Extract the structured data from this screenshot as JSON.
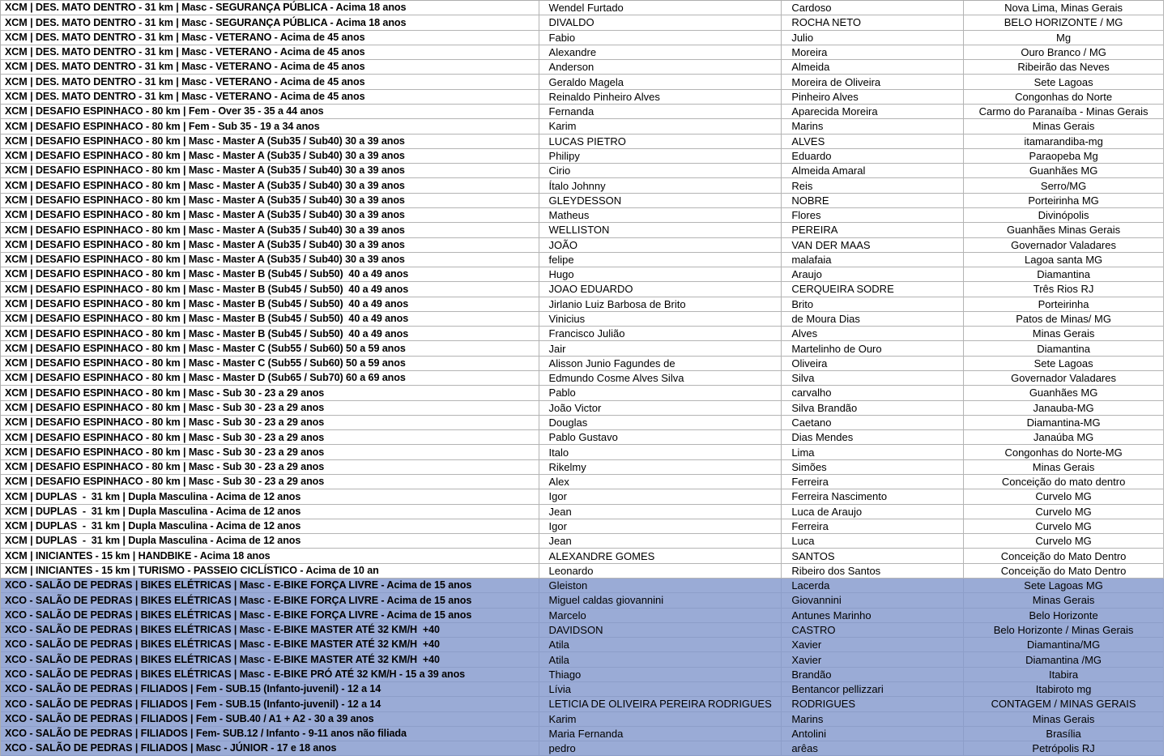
{
  "table": {
    "columns": [
      "category",
      "first_name",
      "last_name",
      "city"
    ],
    "highlight_color": "#9aabd6",
    "rows": [
      {
        "category": "XCM | DES. MATO DENTRO - 31 km | Masc - SEGURANÇA PÚBLICA - Acima 18 anos",
        "first_name": "Wendel Furtado",
        "last_name": "Cardoso",
        "city": "Nova Lima, Minas Gerais",
        "highlighted": false
      },
      {
        "category": "XCM | DES. MATO DENTRO - 31 km | Masc - SEGURANÇA PÚBLICA - Acima 18 anos",
        "first_name": "DIVALDO",
        "last_name": "ROCHA NETO",
        "city": "BELO HORIZONTE / MG",
        "highlighted": false
      },
      {
        "category": "XCM | DES. MATO DENTRO - 31 km | Masc - VETERANO - Acima de 45 anos",
        "first_name": "Fabio",
        "last_name": "Julio",
        "city": "Mg",
        "highlighted": false
      },
      {
        "category": "XCM | DES. MATO DENTRO - 31 km | Masc - VETERANO - Acima de 45 anos",
        "first_name": "Alexandre",
        "last_name": "Moreira",
        "city": "Ouro Branco / MG",
        "highlighted": false
      },
      {
        "category": "XCM | DES. MATO DENTRO - 31 km | Masc - VETERANO - Acima de 45 anos",
        "first_name": "Anderson",
        "last_name": "Almeida",
        "city": "Ribeirão das Neves",
        "highlighted": false
      },
      {
        "category": "XCM | DES. MATO DENTRO - 31 km | Masc - VETERANO - Acima de 45 anos",
        "first_name": "Geraldo Magela",
        "last_name": "Moreira de Oliveira",
        "city": "Sete Lagoas",
        "highlighted": false
      },
      {
        "category": "XCM | DES. MATO DENTRO - 31 km | Masc - VETERANO - Acima de 45 anos",
        "first_name": "Reinaldo Pinheiro Alves",
        "last_name": "Pinheiro Alves",
        "city": "Congonhas do Norte",
        "highlighted": false
      },
      {
        "category": "XCM | DESAFIO ESPINHACO - 80 km | Fem - Over 35 - 35 a 44 anos",
        "first_name": "Fernanda",
        "last_name": "Aparecida Moreira",
        "city": "Carmo do Paranaíba - Minas Gerais",
        "highlighted": false
      },
      {
        "category": "XCM | DESAFIO ESPINHACO - 80 km | Fem - Sub 35 - 19 a 34 anos",
        "first_name": "Karim",
        "last_name": "Marins",
        "city": "Minas Gerais",
        "highlighted": false
      },
      {
        "category": "XCM | DESAFIO ESPINHACO - 80 km | Masc - Master A (Sub35 / Sub40) 30 a 39 anos",
        "first_name": "LUCAS PIETRO",
        "last_name": "ALVES",
        "city": "itamarandiba-mg",
        "highlighted": false
      },
      {
        "category": "XCM | DESAFIO ESPINHACO - 80 km | Masc - Master A (Sub35 / Sub40) 30 a 39 anos",
        "first_name": "Philipy",
        "last_name": "Eduardo",
        "city": "Paraopeba Mg",
        "highlighted": false
      },
      {
        "category": "XCM | DESAFIO ESPINHACO - 80 km | Masc - Master A (Sub35 / Sub40) 30 a 39 anos",
        "first_name": "Cirio",
        "last_name": "Almeida Amaral",
        "city": "Guanhães MG",
        "highlighted": false
      },
      {
        "category": "XCM | DESAFIO ESPINHACO - 80 km | Masc - Master A (Sub35 / Sub40) 30 a 39 anos",
        "first_name": "Ítalo Johnny",
        "last_name": "Reis",
        "city": "Serro/MG",
        "highlighted": false
      },
      {
        "category": "XCM | DESAFIO ESPINHACO - 80 km | Masc - Master A (Sub35 / Sub40) 30 a 39 anos",
        "first_name": "GLEYDESSON",
        "last_name": "NOBRE",
        "city": "Porteirinha MG",
        "highlighted": false
      },
      {
        "category": "XCM | DESAFIO ESPINHACO - 80 km | Masc - Master A (Sub35 / Sub40) 30 a 39 anos",
        "first_name": "Matheus",
        "last_name": "Flores",
        "city": "Divinópolis",
        "highlighted": false
      },
      {
        "category": "XCM | DESAFIO ESPINHACO - 80 km | Masc - Master A (Sub35 / Sub40) 30 a 39 anos",
        "first_name": "WELLISTON",
        "last_name": "PEREIRA",
        "city": "Guanhães Minas Gerais",
        "highlighted": false
      },
      {
        "category": "XCM | DESAFIO ESPINHACO - 80 km | Masc - Master A (Sub35 / Sub40) 30 a 39 anos",
        "first_name": "JOÃO",
        "last_name": "VAN DER MAAS",
        "city": "Governador Valadares",
        "highlighted": false
      },
      {
        "category": "XCM | DESAFIO ESPINHACO - 80 km | Masc - Master A (Sub35 / Sub40) 30 a 39 anos",
        "first_name": "felipe",
        "last_name": "malafaia",
        "city": "Lagoa santa MG",
        "highlighted": false
      },
      {
        "category": "XCM | DESAFIO ESPINHACO - 80 km | Masc - Master B (Sub45 / Sub50)  40 a 49 anos",
        "first_name": "Hugo",
        "last_name": "Araujo",
        "city": "Diamantina",
        "highlighted": false
      },
      {
        "category": "XCM | DESAFIO ESPINHACO - 80 km | Masc - Master B (Sub45 / Sub50)  40 a 49 anos",
        "first_name": "JOAO EDUARDO",
        "last_name": "CERQUEIRA SODRE",
        "city": "Três Rios RJ",
        "highlighted": false
      },
      {
        "category": "XCM | DESAFIO ESPINHACO - 80 km | Masc - Master B (Sub45 / Sub50)  40 a 49 anos",
        "first_name": "Jirlanio Luiz Barbosa de Brito",
        "last_name": "Brito",
        "city": "Porteirinha",
        "highlighted": false
      },
      {
        "category": "XCM | DESAFIO ESPINHACO - 80 km | Masc - Master B (Sub45 / Sub50)  40 a 49 anos",
        "first_name": "Vinicius",
        "last_name": "de Moura Dias",
        "city": "Patos de Minas/ MG",
        "highlighted": false
      },
      {
        "category": "XCM | DESAFIO ESPINHACO - 80 km | Masc - Master B (Sub45 / Sub50)  40 a 49 anos",
        "first_name": "Francisco Julião",
        "last_name": "Alves",
        "city": "Minas Gerais",
        "highlighted": false
      },
      {
        "category": "XCM | DESAFIO ESPINHACO - 80 km | Masc - Master C (Sub55 / Sub60) 50 a 59 anos",
        "first_name": "Jair",
        "last_name": "Martelinho de Ouro",
        "city": "Diamantina",
        "highlighted": false
      },
      {
        "category": "XCM | DESAFIO ESPINHACO - 80 km | Masc - Master C (Sub55 / Sub60) 50 a 59 anos",
        "first_name": "Alisson Junio Fagundes de",
        "last_name": "Oliveira",
        "city": "Sete Lagoas",
        "highlighted": false
      },
      {
        "category": "XCM | DESAFIO ESPINHACO - 80 km | Masc - Master D (Sub65 / Sub70) 60 a 69 anos",
        "first_name": "Edmundo Cosme Alves Silva",
        "last_name": "Silva",
        "city": "Governador Valadares",
        "highlighted": false
      },
      {
        "category": "XCM | DESAFIO ESPINHACO - 80 km | Masc - Sub 30 - 23 a 29 anos",
        "first_name": "Pablo",
        "last_name": "carvalho",
        "city": "Guanhães MG",
        "highlighted": false
      },
      {
        "category": "XCM | DESAFIO ESPINHACO - 80 km | Masc - Sub 30 - 23 a 29 anos",
        "first_name": "João Victor",
        "last_name": "Silva Brandão",
        "city": "Janauba-MG",
        "highlighted": false
      },
      {
        "category": "XCM | DESAFIO ESPINHACO - 80 km | Masc - Sub 30 - 23 a 29 anos",
        "first_name": "Douglas",
        "last_name": "Caetano",
        "city": "Diamantina-MG",
        "highlighted": false
      },
      {
        "category": "XCM | DESAFIO ESPINHACO - 80 km | Masc - Sub 30 - 23 a 29 anos",
        "first_name": "Pablo Gustavo",
        "last_name": "Dias Mendes",
        "city": "Janaúba MG",
        "highlighted": false
      },
      {
        "category": "XCM | DESAFIO ESPINHACO - 80 km | Masc - Sub 30 - 23 a 29 anos",
        "first_name": "Italo",
        "last_name": "Lima",
        "city": "Congonhas do Norte-MG",
        "highlighted": false
      },
      {
        "category": "XCM | DESAFIO ESPINHACO - 80 km | Masc - Sub 30 - 23 a 29 anos",
        "first_name": "Rikelmy",
        "last_name": "Simões",
        "city": "Minas Gerais",
        "highlighted": false
      },
      {
        "category": "XCM | DESAFIO ESPINHACO - 80 km | Masc - Sub 30 - 23 a 29 anos",
        "first_name": "Alex",
        "last_name": "Ferreira",
        "city": "Conceição do mato dentro",
        "highlighted": false
      },
      {
        "category": "XCM | DUPLAS  -  31 km | Dupla Masculina - Acima de 12 anos",
        "first_name": "Igor",
        "last_name": "Ferreira Nascimento",
        "city": "Curvelo MG",
        "highlighted": false
      },
      {
        "category": "XCM | DUPLAS  -  31 km | Dupla Masculina - Acima de 12 anos",
        "first_name": "Jean",
        "last_name": "Luca de Araujo",
        "city": "Curvelo MG",
        "highlighted": false
      },
      {
        "category": "XCM | DUPLAS  -  31 km | Dupla Masculina - Acima de 12 anos",
        "first_name": "Igor",
        "last_name": "Ferreira",
        "city": "Curvelo MG",
        "highlighted": false
      },
      {
        "category": "XCM | DUPLAS  -  31 km | Dupla Masculina - Acima de 12 anos",
        "first_name": "Jean",
        "last_name": "Luca",
        "city": "Curvelo MG",
        "highlighted": false
      },
      {
        "category": "XCM | INICIANTES - 15 km | HANDBIKE - Acima 18 anos",
        "first_name": "ALEXANDRE GOMES",
        "last_name": "SANTOS",
        "city": "Conceição do Mato Dentro",
        "highlighted": false
      },
      {
        "category": "XCM | INICIANTES - 15 km | TURISMO - PASSEIO CICLÍSTICO - Acima de 10 an",
        "first_name": "Leonardo",
        "last_name": "Ribeiro dos Santos",
        "city": "Conceição do Mato Dentro",
        "highlighted": false
      },
      {
        "category": "XCO - SALÃO DE PEDRAS | BIKES ELÉTRICAS | Masc - E-BIKE FORÇA LIVRE - Acima de 15 anos",
        "first_name": "Gleiston",
        "last_name": "Lacerda",
        "city": "Sete Lagoas MG",
        "highlighted": true
      },
      {
        "category": "XCO - SALÃO DE PEDRAS | BIKES ELÉTRICAS | Masc - E-BIKE FORÇA LIVRE - Acima de 15 anos",
        "first_name": "Miguel caldas giovannini",
        "last_name": "Giovannini",
        "city": "Minas Gerais",
        "highlighted": true
      },
      {
        "category": "XCO - SALÃO DE PEDRAS | BIKES ELÉTRICAS | Masc - E-BIKE FORÇA LIVRE - Acima de 15 anos",
        "first_name": "Marcelo",
        "last_name": "Antunes Marinho",
        "city": "Belo Horizonte",
        "highlighted": true
      },
      {
        "category": "XCO - SALÃO DE PEDRAS | BIKES ELÉTRICAS | Masc - E-BIKE MASTER ATÉ 32 KM/H  +40",
        "first_name": "DAVIDSON",
        "last_name": "CASTRO",
        "city": "Belo Horizonte / Minas Gerais",
        "highlighted": true
      },
      {
        "category": "XCO - SALÃO DE PEDRAS | BIKES ELÉTRICAS | Masc - E-BIKE MASTER ATÉ 32 KM/H  +40",
        "first_name": "Atila",
        "last_name": "Xavier",
        "city": "Diamantina/MG",
        "highlighted": true
      },
      {
        "category": "XCO - SALÃO DE PEDRAS | BIKES ELÉTRICAS | Masc - E-BIKE MASTER ATÉ 32 KM/H  +40",
        "first_name": "Atila",
        "last_name": "Xavier",
        "city": "Diamantina /MG",
        "highlighted": true
      },
      {
        "category": "XCO - SALÃO DE PEDRAS | BIKES ELÉTRICAS | Masc - E-BIKE PRÓ ATÉ 32 KM/H - 15 a 39 anos",
        "first_name": "Thiago",
        "last_name": "Brandão",
        "city": "Itabira",
        "highlighted": true
      },
      {
        "category": "XCO - SALÃO DE PEDRAS | FILIADOS | Fem - SUB.15 (Infanto-juvenil) - 12 a 14",
        "first_name": "Lívia",
        "last_name": "Bentancor pellizzari",
        "city": "Itabiroto mg",
        "highlighted": true
      },
      {
        "category": "XCO - SALÃO DE PEDRAS | FILIADOS | Fem - SUB.15 (Infanto-juvenil) - 12 a 14",
        "first_name": "LETICIA DE OLIVEIRA PEREIRA RODRIGUES",
        "last_name": "RODRIGUES",
        "city": "CONTAGEM / MINAS GERAIS",
        "highlighted": true
      },
      {
        "category": "XCO - SALÃO DE PEDRAS | FILIADOS | Fem - SUB.40 / A1 + A2 - 30 a 39 anos",
        "first_name": "Karim",
        "last_name": "Marins",
        "city": "Minas Gerais",
        "highlighted": true
      },
      {
        "category": "XCO - SALÃO DE PEDRAS | FILIADOS | Fem- SUB.12 / Infanto - 9-11 anos não filiada",
        "first_name": "Maria Fernanda",
        "last_name": "Antolini",
        "city": "Brasília",
        "highlighted": true
      },
      {
        "category": "XCO - SALÃO DE PEDRAS | FILIADOS | Masc - JÚNIOR - 17 e 18 anos",
        "first_name": "pedro",
        "last_name": "arêas",
        "city": "Petrópolis RJ",
        "highlighted": true
      }
    ]
  }
}
